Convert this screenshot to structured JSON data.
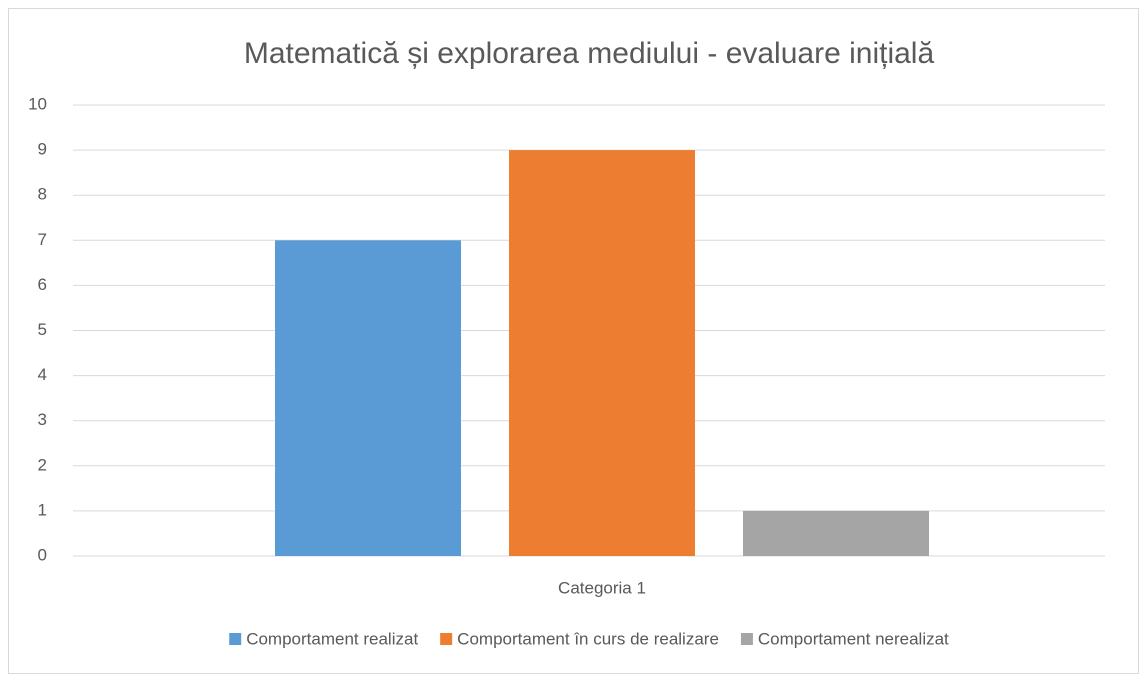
{
  "chart_data": {
    "type": "bar",
    "title": "Matematică și explorarea mediului - evaluare inițială",
    "categories": [
      "Categoria 1"
    ],
    "series": [
      {
        "name": "Comportament realizat",
        "color": "#5b9bd5",
        "values": [
          7
        ]
      },
      {
        "name": "Comportament în curs de realizare",
        "color": "#ed7d31",
        "values": [
          9
        ]
      },
      {
        "name": "Comportament nerealizat",
        "color": "#a5a5a5",
        "values": [
          1
        ]
      }
    ],
    "ylim": [
      0,
      10
    ],
    "yticks": [
      0,
      1,
      2,
      3,
      4,
      5,
      6,
      7,
      8,
      9,
      10
    ],
    "grid": true,
    "legend": "bottom"
  }
}
